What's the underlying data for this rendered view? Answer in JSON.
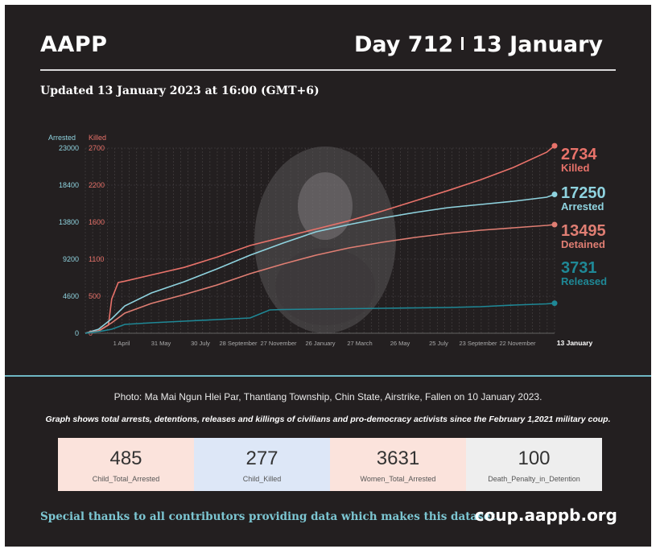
{
  "header": {
    "brand": "AAPP",
    "day_label": "Day 712",
    "date_label": "13 January",
    "updated": "Updated 13 January 2023 at 16:00 (GMT+6)"
  },
  "chart_data": {
    "type": "line",
    "title": "",
    "left_axis_label": "Arrested",
    "right_axis_label": "Killed",
    "left_axis_ticks": [
      0,
      4600,
      9200,
      13800,
      18400,
      23000
    ],
    "right_axis_ticks": [
      "0",
      "500",
      "1100",
      "1600",
      "2200",
      "2700"
    ],
    "ylim_arrested": [
      0,
      23000
    ],
    "ylim_killed": [
      0,
      2700
    ],
    "x_ticks": [
      "1 April",
      "31 May",
      "30 July",
      "28 September",
      "27 November",
      "26 January",
      "27 March",
      "26 May",
      "25 July",
      "23 September",
      "22 November",
      "13 January"
    ],
    "x_day_range": [
      0,
      712
    ],
    "grid": true,
    "legend": "right, end labels",
    "series": [
      {
        "name": "Killed",
        "axis": "right",
        "color": "#e8726a",
        "end_value": "2734",
        "x": [
          0,
          20,
          35,
          40,
          50,
          60,
          100,
          150,
          200,
          250,
          300,
          350,
          400,
          450,
          500,
          550,
          600,
          650,
          700,
          712
        ],
        "y": [
          0,
          30,
          120,
          500,
          740,
          760,
          850,
          960,
          1110,
          1280,
          1400,
          1520,
          1640,
          1780,
          1930,
          2080,
          2240,
          2420,
          2640,
          2734
        ]
      },
      {
        "name": "Arrested",
        "axis": "left",
        "color": "#8fd3df",
        "end_value": "17250",
        "x": [
          0,
          20,
          40,
          60,
          100,
          150,
          200,
          250,
          300,
          350,
          400,
          450,
          500,
          550,
          600,
          650,
          700,
          712
        ],
        "y": [
          0,
          500,
          1800,
          3400,
          5000,
          6400,
          8000,
          9700,
          11200,
          12600,
          13500,
          14300,
          15000,
          15600,
          16000,
          16400,
          16900,
          17250
        ]
      },
      {
        "name": "Detained",
        "axis": "left",
        "color": "#e07e73",
        "end_value": "13495",
        "x": [
          0,
          20,
          40,
          60,
          100,
          150,
          200,
          250,
          300,
          350,
          400,
          450,
          500,
          550,
          600,
          650,
          700,
          712
        ],
        "y": [
          0,
          300,
          1300,
          2500,
          3700,
          4800,
          6000,
          7400,
          8600,
          9700,
          10600,
          11300,
          11900,
          12400,
          12800,
          13100,
          13400,
          13495
        ]
      },
      {
        "name": "Released",
        "axis": "left",
        "color": "#1f8896",
        "end_value": "3731",
        "x": [
          0,
          20,
          40,
          60,
          100,
          150,
          200,
          250,
          280,
          300,
          350,
          400,
          450,
          500,
          550,
          600,
          650,
          700,
          712
        ],
        "y": [
          0,
          200,
          500,
          1100,
          1300,
          1500,
          1700,
          1900,
          2900,
          2950,
          3000,
          3050,
          3100,
          3150,
          3200,
          3300,
          3500,
          3650,
          3731
        ]
      }
    ]
  },
  "caption": "Photo:  Ma Mai Ngun Hlei Par, Thantlang Township, Chin State, Airstrike, Fallen on 10 January 2023.",
  "note": "Graph shows total arrests, detentions, releases and killings of civilians and pro-democracy activists since the February 1,2021 military coup.",
  "stats": [
    {
      "value": "485",
      "label": "Child_Total_Arrested",
      "bg": "#fbe3dc"
    },
    {
      "value": "277",
      "label": "Child_Killed",
      "bg": "#dde7f7"
    },
    {
      "value": "3631",
      "label": "Women_Total_Arrested",
      "bg": "#fbe3dc"
    },
    {
      "value": "100",
      "label": "Death_Penalty_in_Detention",
      "bg": "#eeeeee"
    }
  ],
  "footer": {
    "thanks": "Special thanks to all contributors providing data which makes this dataset.",
    "site": "coup.aappb.org"
  }
}
